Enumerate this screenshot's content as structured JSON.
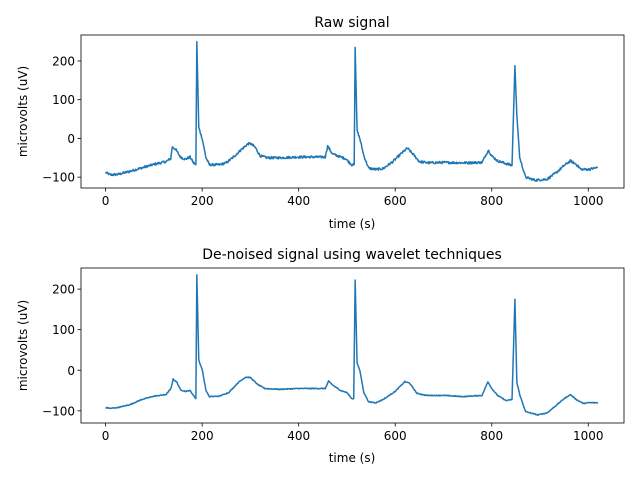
{
  "colors": {
    "series": "#1f77b4",
    "axes": "#000000",
    "background": "#ffffff"
  },
  "chart_data": [
    {
      "type": "line",
      "title": "Raw signal",
      "xlabel": "time (s)",
      "ylabel": "microvolts (uV)",
      "xlim": [
        -51,
        1074
      ],
      "ylim": [
        -128,
        267
      ],
      "xticks": [
        0,
        200,
        400,
        600,
        800,
        1000
      ],
      "yticks": [
        -100,
        0,
        100,
        200
      ],
      "grid": false,
      "series": [
        {
          "noise": 3,
          "points": [
            [
              0,
              -88
            ],
            [
              10,
              -94
            ],
            [
              25,
              -93
            ],
            [
              50,
              -85
            ],
            [
              75,
              -76
            ],
            [
              100,
              -67
            ],
            [
              125,
              -60
            ],
            [
              135,
              -52
            ],
            [
              138,
              -22
            ],
            [
              145,
              -28
            ],
            [
              155,
              -48
            ],
            [
              165,
              -54
            ],
            [
              175,
              -48
            ],
            [
              182,
              -63
            ],
            [
              187,
              -68
            ],
            [
              189,
              250
            ],
            [
              193,
              28
            ],
            [
              200,
              0
            ],
            [
              208,
              -50
            ],
            [
              215,
              -68
            ],
            [
              235,
              -68
            ],
            [
              250,
              -63
            ],
            [
              265,
              -48
            ],
            [
              280,
              -30
            ],
            [
              295,
              -14
            ],
            [
              300,
              -13
            ],
            [
              310,
              -23
            ],
            [
              320,
              -45
            ],
            [
              335,
              -50
            ],
            [
              360,
              -50
            ],
            [
              400,
              -48
            ],
            [
              430,
              -48
            ],
            [
              455,
              -48
            ],
            [
              460,
              -20
            ],
            [
              470,
              -40
            ],
            [
              485,
              -47
            ],
            [
              497,
              -52
            ],
            [
              505,
              -62
            ],
            [
              510,
              -68
            ],
            [
              515,
              -68
            ],
            [
              517,
              235
            ],
            [
              521,
              20
            ],
            [
              527,
              -2
            ],
            [
              535,
              -45
            ],
            [
              545,
              -77
            ],
            [
              560,
              -80
            ],
            [
              575,
              -78
            ],
            [
              595,
              -60
            ],
            [
              610,
              -42
            ],
            [
              625,
              -25
            ],
            [
              638,
              -42
            ],
            [
              650,
              -60
            ],
            [
              670,
              -63
            ],
            [
              700,
              -62
            ],
            [
              740,
              -63
            ],
            [
              780,
              -62
            ],
            [
              793,
              -30
            ],
            [
              800,
              -45
            ],
            [
              812,
              -58
            ],
            [
              830,
              -65
            ],
            [
              842,
              -70
            ],
            [
              848,
              188
            ],
            [
              852,
              60
            ],
            [
              858,
              -50
            ],
            [
              870,
              -100
            ],
            [
              890,
              -108
            ],
            [
              915,
              -105
            ],
            [
              935,
              -87
            ],
            [
              950,
              -70
            ],
            [
              963,
              -58
            ],
            [
              975,
              -67
            ],
            [
              985,
              -80
            ],
            [
              1000,
              -80
            ],
            [
              1020,
              -75
            ]
          ]
        }
      ]
    },
    {
      "type": "line",
      "title": "De-noised signal using wavelet techniques",
      "xlabel": "time (s)",
      "ylabel": "microvolts (uV)",
      "xlim": [
        -51,
        1074
      ],
      "ylim": [
        -130,
        252
      ],
      "xticks": [
        0,
        200,
        400,
        600,
        800,
        1000
      ],
      "yticks": [
        -100,
        0,
        100,
        200
      ],
      "grid": false,
      "series": [
        {
          "noise": 1,
          "points": [
            [
              0,
              -92
            ],
            [
              10,
              -94
            ],
            [
              25,
              -92
            ],
            [
              50,
              -85
            ],
            [
              75,
              -72
            ],
            [
              100,
              -64
            ],
            [
              125,
              -60
            ],
            [
              135,
              -46
            ],
            [
              140,
              -22
            ],
            [
              148,
              -30
            ],
            [
              155,
              -48
            ],
            [
              165,
              -52
            ],
            [
              175,
              -50
            ],
            [
              182,
              -62
            ],
            [
              187,
              -70
            ],
            [
              189,
              235
            ],
            [
              193,
              25
            ],
            [
              200,
              2
            ],
            [
              208,
              -50
            ],
            [
              215,
              -65
            ],
            [
              235,
              -64
            ],
            [
              255,
              -55
            ],
            [
              275,
              -30
            ],
            [
              290,
              -17
            ],
            [
              300,
              -18
            ],
            [
              315,
              -35
            ],
            [
              330,
              -45
            ],
            [
              360,
              -47
            ],
            [
              400,
              -45
            ],
            [
              430,
              -45
            ],
            [
              455,
              -45
            ],
            [
              462,
              -27
            ],
            [
              472,
              -38
            ],
            [
              487,
              -50
            ],
            [
              500,
              -55
            ],
            [
              510,
              -70
            ],
            [
              514,
              -70
            ],
            [
              517,
              222
            ],
            [
              521,
              18
            ],
            [
              527,
              -2
            ],
            [
              535,
              -55
            ],
            [
              545,
              -78
            ],
            [
              560,
              -80
            ],
            [
              575,
              -72
            ],
            [
              600,
              -52
            ],
            [
              620,
              -28
            ],
            [
              630,
              -32
            ],
            [
              645,
              -57
            ],
            [
              665,
              -62
            ],
            [
              700,
              -62
            ],
            [
              740,
              -65
            ],
            [
              780,
              -62
            ],
            [
              792,
              -28
            ],
            [
              800,
              -45
            ],
            [
              812,
              -62
            ],
            [
              830,
              -75
            ],
            [
              842,
              -72
            ],
            [
              848,
              175
            ],
            [
              852,
              -30
            ],
            [
              858,
              -60
            ],
            [
              870,
              -102
            ],
            [
              895,
              -110
            ],
            [
              915,
              -105
            ],
            [
              935,
              -85
            ],
            [
              950,
              -70
            ],
            [
              963,
              -60
            ],
            [
              975,
              -72
            ],
            [
              990,
              -82
            ],
            [
              1000,
              -80
            ],
            [
              1020,
              -80
            ]
          ]
        }
      ]
    }
  ]
}
